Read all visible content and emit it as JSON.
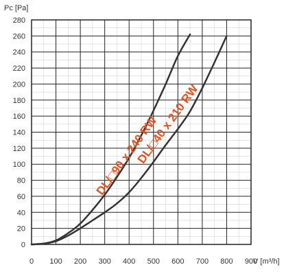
{
  "chart_data": {
    "type": "line",
    "title": "",
    "ylabel": "Pc [Pa]",
    "xlabel": "V [m³/h]",
    "xlim": [
      0,
      900
    ],
    "ylim": [
      0,
      280
    ],
    "x_ticks": [
      "0",
      "100",
      "200",
      "300",
      "400",
      "500",
      "600",
      "700",
      "800",
      "900"
    ],
    "y_ticks": [
      "0",
      "20",
      "40",
      "60",
      "80",
      "100",
      "120",
      "140",
      "160",
      "180",
      "200",
      "220",
      "240",
      "260",
      "280"
    ],
    "grid": true,
    "series": [
      {
        "name": "DL/□90 x 240 RW",
        "color": "#333333",
        "label_color": "#e8501d",
        "points": [
          [
            0,
            0
          ],
          [
            50,
            1
          ],
          [
            100,
            5
          ],
          [
            150,
            14
          ],
          [
            200,
            26
          ],
          [
            250,
            43
          ],
          [
            300,
            62
          ],
          [
            350,
            84
          ],
          [
            400,
            108
          ],
          [
            450,
            136
          ],
          [
            500,
            167
          ],
          [
            550,
            200
          ],
          [
            600,
            235
          ],
          [
            650,
            262
          ]
        ]
      },
      {
        "name": "DL/□40 x 210 RW",
        "color": "#333333",
        "label_color": "#e8501d",
        "points": [
          [
            0,
            0
          ],
          [
            50,
            1
          ],
          [
            100,
            4
          ],
          [
            150,
            11
          ],
          [
            200,
            20
          ],
          [
            250,
            30
          ],
          [
            300,
            40
          ],
          [
            350,
            51
          ],
          [
            400,
            65
          ],
          [
            450,
            83
          ],
          [
            500,
            103
          ],
          [
            550,
            124
          ],
          [
            600,
            144
          ],
          [
            650,
            166
          ],
          [
            700,
            195
          ],
          [
            750,
            227
          ],
          [
            800,
            260
          ]
        ]
      }
    ]
  }
}
